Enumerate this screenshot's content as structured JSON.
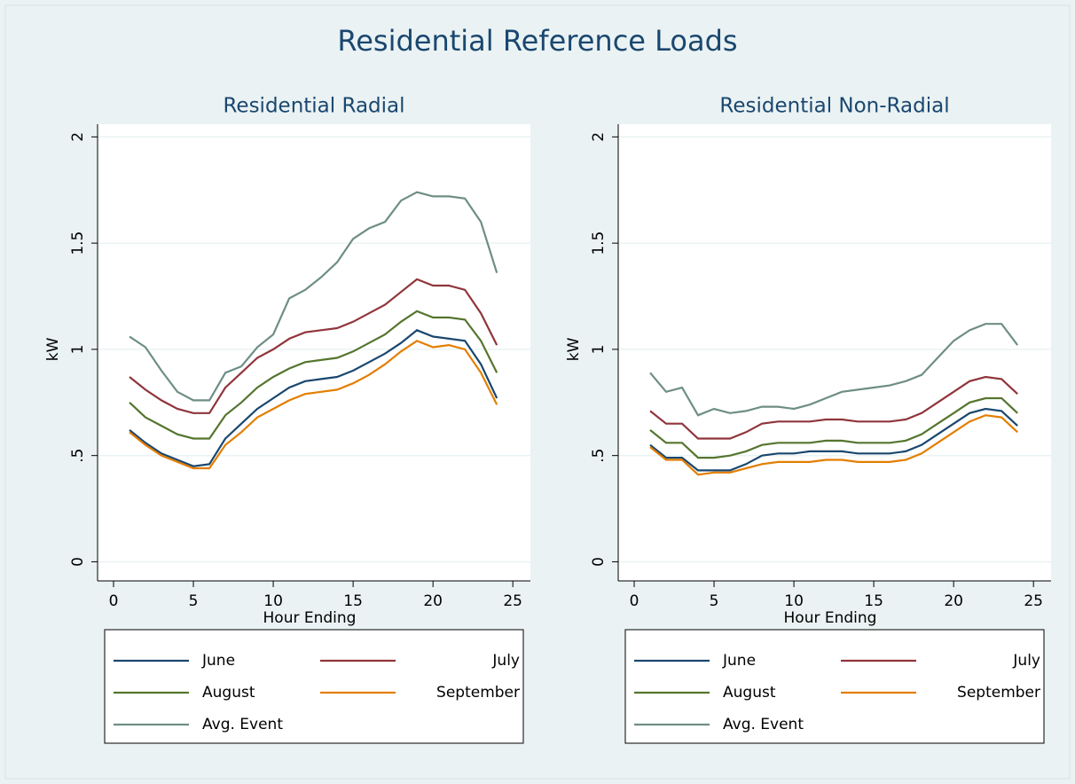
{
  "title": "Residential Reference Loads",
  "chart_data": [
    {
      "type": "line",
      "title": "Residential Radial",
      "xlabel": "Hour Ending",
      "ylabel": "kW",
      "x": [
        1,
        2,
        3,
        4,
        5,
        6,
        7,
        8,
        9,
        10,
        11,
        12,
        13,
        14,
        15,
        16,
        17,
        18,
        19,
        20,
        21,
        22,
        23,
        24
      ],
      "xlim": [
        -1,
        26.1
      ],
      "xticks": [
        0,
        5,
        10,
        15,
        20,
        25
      ],
      "ylim": [
        -0.09,
        2.06
      ],
      "yticks": [
        0,
        {
          "value": 0.5,
          "label": ".5"
        },
        1,
        1.5,
        2
      ],
      "grid": true,
      "series": [
        {
          "name": "June",
          "color": "#1a476f",
          "values": [
            0.62,
            0.56,
            0.51,
            0.48,
            0.45,
            0.46,
            0.58,
            0.65,
            0.72,
            0.77,
            0.82,
            0.85,
            0.86,
            0.87,
            0.9,
            0.94,
            0.98,
            1.03,
            1.09,
            1.06,
            1.05,
            1.04,
            0.93,
            0.77
          ]
        },
        {
          "name": "July",
          "color": "#90353b",
          "values": [
            0.87,
            0.81,
            0.76,
            0.72,
            0.7,
            0.7,
            0.82,
            0.89,
            0.96,
            1.0,
            1.05,
            1.08,
            1.09,
            1.1,
            1.13,
            1.17,
            1.21,
            1.27,
            1.33,
            1.3,
            1.3,
            1.28,
            1.17,
            1.02
          ]
        },
        {
          "name": "August",
          "color": "#55752f",
          "values": [
            0.75,
            0.68,
            0.64,
            0.6,
            0.58,
            0.58,
            0.69,
            0.75,
            0.82,
            0.87,
            0.91,
            0.94,
            0.95,
            0.96,
            0.99,
            1.03,
            1.07,
            1.13,
            1.18,
            1.15,
            1.15,
            1.14,
            1.04,
            0.89
          ]
        },
        {
          "name": "September",
          "color": "#e37e00",
          "values": [
            0.61,
            0.55,
            0.5,
            0.47,
            0.44,
            0.44,
            0.55,
            0.61,
            0.68,
            0.72,
            0.76,
            0.79,
            0.8,
            0.81,
            0.84,
            0.88,
            0.93,
            0.99,
            1.04,
            1.01,
            1.02,
            1.0,
            0.89,
            0.74
          ]
        },
        {
          "name": "Avg. Event",
          "color": "#6e8e84",
          "values": [
            1.06,
            1.01,
            0.9,
            0.8,
            0.76,
            0.76,
            0.89,
            0.92,
            1.01,
            1.07,
            1.24,
            1.28,
            1.34,
            1.41,
            1.52,
            1.57,
            1.6,
            1.7,
            1.74,
            1.72,
            1.72,
            1.71,
            1.6,
            1.36
          ]
        }
      ]
    },
    {
      "type": "line",
      "title": "Residential Non-Radial",
      "xlabel": "Hour Ending",
      "ylabel": "kW",
      "x": [
        1,
        2,
        3,
        4,
        5,
        6,
        7,
        8,
        9,
        10,
        11,
        12,
        13,
        14,
        15,
        16,
        17,
        18,
        19,
        20,
        21,
        22,
        23,
        24
      ],
      "xlim": [
        -1,
        26.1
      ],
      "xticks": [
        0,
        5,
        10,
        15,
        20,
        25
      ],
      "ylim": [
        -0.09,
        2.06
      ],
      "yticks": [
        0,
        {
          "value": 0.5,
          "label": ".5"
        },
        1,
        1.5,
        2
      ],
      "grid": true,
      "series": [
        {
          "name": "June",
          "color": "#1a476f",
          "values": [
            0.55,
            0.49,
            0.49,
            0.43,
            0.43,
            0.43,
            0.46,
            0.5,
            0.51,
            0.51,
            0.52,
            0.52,
            0.52,
            0.51,
            0.51,
            0.51,
            0.52,
            0.55,
            0.6,
            0.65,
            0.7,
            0.72,
            0.71,
            0.64
          ]
        },
        {
          "name": "July",
          "color": "#90353b",
          "values": [
            0.71,
            0.65,
            0.65,
            0.58,
            0.58,
            0.58,
            0.61,
            0.65,
            0.66,
            0.66,
            0.66,
            0.67,
            0.67,
            0.66,
            0.66,
            0.66,
            0.67,
            0.7,
            0.75,
            0.8,
            0.85,
            0.87,
            0.86,
            0.79
          ]
        },
        {
          "name": "August",
          "color": "#55752f",
          "values": [
            0.62,
            0.56,
            0.56,
            0.49,
            0.49,
            0.5,
            0.52,
            0.55,
            0.56,
            0.56,
            0.56,
            0.57,
            0.57,
            0.56,
            0.56,
            0.56,
            0.57,
            0.6,
            0.65,
            0.7,
            0.75,
            0.77,
            0.77,
            0.7
          ]
        },
        {
          "name": "September",
          "color": "#e37e00",
          "values": [
            0.54,
            0.48,
            0.48,
            0.41,
            0.42,
            0.42,
            0.44,
            0.46,
            0.47,
            0.47,
            0.47,
            0.48,
            0.48,
            0.47,
            0.47,
            0.47,
            0.48,
            0.51,
            0.56,
            0.61,
            0.66,
            0.69,
            0.68,
            0.61
          ]
        },
        {
          "name": "Avg. Event",
          "color": "#6e8e84",
          "values": [
            0.89,
            0.8,
            0.82,
            0.69,
            0.72,
            0.7,
            0.71,
            0.73,
            0.73,
            0.72,
            0.74,
            0.77,
            0.8,
            0.81,
            0.82,
            0.83,
            0.85,
            0.88,
            0.96,
            1.04,
            1.09,
            1.12,
            1.12,
            1.02
          ]
        }
      ]
    }
  ]
}
